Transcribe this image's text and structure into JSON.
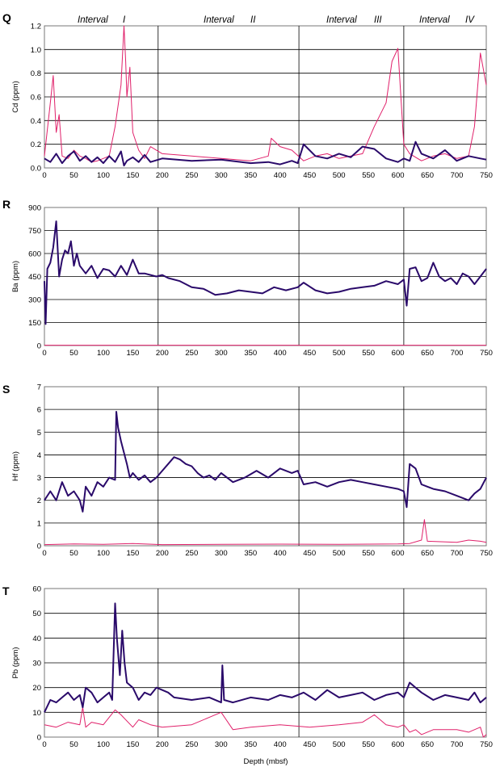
{
  "colors": {
    "series_a": "#2a0a6a",
    "series_b": "#e0206a",
    "grid": "#000000",
    "frame": "#777777"
  },
  "intervals": [
    {
      "label": "Interval",
      "numeral": "I"
    },
    {
      "label": "Interval",
      "numeral": "II"
    },
    {
      "label": "Interval",
      "numeral": "III"
    },
    {
      "label": "Interval",
      "numeral": "IV"
    }
  ],
  "interval_boundaries": [
    193,
    432,
    610
  ],
  "xlabel": "Depth  (mbsf)",
  "x_ticks": [
    "0",
    "50",
    "100",
    "150",
    "200",
    "250",
    "300",
    "350",
    "400",
    "450",
    "500",
    "550",
    "600",
    "650",
    "700",
    "750"
  ],
  "chart_data": [
    {
      "type": "line",
      "panel": "Q",
      "ylabel": "Cd (ppm)",
      "xlim": [
        0,
        750
      ],
      "ylim": [
        0,
        1.2
      ],
      "y_ticks": [
        "0.0",
        "0.2",
        "0.4",
        "0.6",
        "0.8",
        "1.0",
        "1.2"
      ],
      "series": [
        {
          "x": [
            0,
            10,
            20,
            30,
            40,
            50,
            60,
            70,
            80,
            90,
            100,
            110,
            120,
            130,
            135,
            140,
            150,
            160,
            170,
            180,
            200,
            250,
            300,
            350,
            380,
            400,
            420,
            430,
            440,
            460,
            480,
            500,
            520,
            540,
            560,
            580,
            600,
            610,
            620,
            630,
            640,
            660,
            680,
            700,
            720,
            740,
            750
          ],
          "values": [
            0.08,
            0.05,
            0.12,
            0.04,
            0.1,
            0.14,
            0.06,
            0.1,
            0.05,
            0.09,
            0.04,
            0.1,
            0.05,
            0.14,
            0.02,
            0.06,
            0.09,
            0.05,
            0.11,
            0.05,
            0.08,
            0.06,
            0.07,
            0.04,
            0.05,
            0.03,
            0.06,
            0.04,
            0.2,
            0.1,
            0.08,
            0.12,
            0.09,
            0.18,
            0.16,
            0.08,
            0.05,
            0.08,
            0.06,
            0.22,
            0.12,
            0.08,
            0.15,
            0.06,
            0.1,
            0.08,
            0.07
          ]
        },
        {
          "x": [
            0,
            10,
            15,
            20,
            25,
            30,
            40,
            50,
            60,
            70,
            80,
            90,
            100,
            110,
            120,
            130,
            135,
            138,
            140,
            145,
            150,
            160,
            170,
            180,
            200,
            250,
            300,
            350,
            380,
            385,
            400,
            420,
            440,
            460,
            480,
            500,
            520,
            540,
            560,
            580,
            590,
            600,
            610,
            620,
            640,
            660,
            680,
            700,
            720,
            730,
            740,
            750
          ],
          "values": [
            0.1,
            0.55,
            0.78,
            0.3,
            0.45,
            0.1,
            0.08,
            0.15,
            0.1,
            0.08,
            0.05,
            0.06,
            0.08,
            0.1,
            0.35,
            0.7,
            1.2,
            0.9,
            0.6,
            0.85,
            0.3,
            0.15,
            0.08,
            0.18,
            0.12,
            0.1,
            0.08,
            0.06,
            0.1,
            0.25,
            0.18,
            0.15,
            0.06,
            0.1,
            0.12,
            0.08,
            0.1,
            0.12,
            0.35,
            0.55,
            0.9,
            1.01,
            0.2,
            0.12,
            0.06,
            0.1,
            0.12,
            0.08,
            0.1,
            0.35,
            0.97,
            0.7
          ]
        }
      ]
    },
    {
      "type": "line",
      "panel": "R",
      "ylabel": "Ba (ppm)",
      "xlim": [
        0,
        750
      ],
      "ylim": [
        0,
        900
      ],
      "y_ticks": [
        "0",
        "150",
        "300",
        "450",
        "600",
        "750",
        "900"
      ],
      "series": [
        {
          "x": [
            0,
            2,
            5,
            10,
            15,
            20,
            25,
            30,
            35,
            40,
            45,
            50,
            55,
            60,
            70,
            80,
            90,
            100,
            110,
            120,
            130,
            140,
            150,
            160,
            170,
            180,
            190,
            200,
            210,
            230,
            250,
            270,
            290,
            310,
            330,
            350,
            370,
            390,
            410,
            430,
            440,
            460,
            480,
            500,
            520,
            540,
            560,
            580,
            600,
            610,
            615,
            620,
            630,
            640,
            650,
            660,
            670,
            680,
            690,
            700,
            710,
            720,
            730,
            740,
            750
          ],
          "values": [
            420,
            140,
            500,
            540,
            640,
            810,
            450,
            560,
            620,
            600,
            680,
            520,
            600,
            520,
            470,
            520,
            440,
            500,
            490,
            450,
            520,
            460,
            560,
            470,
            470,
            460,
            450,
            460,
            440,
            420,
            380,
            370,
            330,
            340,
            360,
            350,
            340,
            380,
            360,
            380,
            410,
            360,
            340,
            350,
            370,
            380,
            390,
            420,
            400,
            430,
            260,
            500,
            510,
            420,
            440,
            540,
            450,
            420,
            440,
            400,
            470,
            450,
            400,
            450,
            500
          ]
        },
        {
          "x": [
            0,
            750
          ],
          "values": [
            2,
            2
          ]
        }
      ]
    },
    {
      "type": "line",
      "panel": "S",
      "ylabel": "Hf (ppm)",
      "xlim": [
        0,
        750
      ],
      "ylim": [
        0,
        7
      ],
      "y_ticks": [
        "0",
        "1",
        "2",
        "3",
        "4",
        "5",
        "6",
        "7"
      ],
      "series": [
        {
          "x": [
            0,
            10,
            20,
            30,
            40,
            50,
            60,
            65,
            70,
            80,
            90,
            100,
            110,
            120,
            122,
            125,
            130,
            140,
            145,
            150,
            160,
            170,
            180,
            190,
            200,
            210,
            220,
            230,
            240,
            250,
            260,
            270,
            280,
            290,
            300,
            320,
            340,
            360,
            380,
            400,
            420,
            430,
            440,
            460,
            480,
            500,
            520,
            540,
            560,
            580,
            600,
            610,
            615,
            620,
            630,
            640,
            650,
            660,
            680,
            700,
            720,
            730,
            740,
            750
          ],
          "values": [
            2.0,
            2.4,
            2.0,
            2.8,
            2.2,
            2.4,
            2.0,
            1.5,
            2.6,
            2.2,
            2.8,
            2.6,
            3.0,
            2.9,
            5.9,
            5.2,
            4.6,
            3.6,
            3.0,
            3.2,
            2.9,
            3.1,
            2.8,
            3.0,
            3.3,
            3.6,
            3.9,
            3.8,
            3.6,
            3.5,
            3.2,
            3.0,
            3.1,
            2.9,
            3.2,
            2.8,
            3.0,
            3.3,
            3.0,
            3.4,
            3.2,
            3.3,
            2.7,
            2.8,
            2.6,
            2.8,
            2.9,
            2.8,
            2.7,
            2.6,
            2.5,
            2.4,
            1.7,
            3.6,
            3.4,
            2.7,
            2.6,
            2.5,
            2.4,
            2.2,
            2.0,
            2.3,
            2.5,
            3.0
          ]
        },
        {
          "x": [
            0,
            50,
            100,
            150,
            200,
            300,
            400,
            500,
            600,
            620,
            640,
            645,
            650,
            700,
            720,
            740,
            750
          ],
          "values": [
            0.05,
            0.08,
            0.06,
            0.1,
            0.05,
            0.06,
            0.07,
            0.06,
            0.08,
            0.1,
            0.25,
            1.15,
            0.2,
            0.15,
            0.25,
            0.2,
            0.15
          ]
        }
      ]
    },
    {
      "type": "line",
      "panel": "T",
      "ylabel": "Pb (ppm)",
      "xlim": [
        0,
        750
      ],
      "ylim": [
        0,
        60
      ],
      "y_ticks": [
        "0",
        "10",
        "20",
        "30",
        "40",
        "50",
        "60"
      ],
      "series": [
        {
          "x": [
            0,
            10,
            20,
            30,
            40,
            50,
            60,
            65,
            70,
            80,
            90,
            100,
            110,
            115,
            120,
            123,
            128,
            132,
            136,
            140,
            150,
            160,
            170,
            180,
            190,
            200,
            210,
            220,
            250,
            280,
            300,
            302,
            305,
            320,
            350,
            380,
            400,
            420,
            440,
            460,
            480,
            500,
            520,
            540,
            560,
            580,
            600,
            610,
            620,
            630,
            640,
            660,
            680,
            700,
            720,
            730,
            740,
            750
          ],
          "values": [
            10,
            15,
            14,
            16,
            18,
            15,
            17,
            12,
            20,
            18,
            14,
            16,
            18,
            15,
            54,
            40,
            25,
            43,
            30,
            22,
            20,
            15,
            18,
            17,
            20,
            19,
            18,
            16,
            15,
            16,
            14,
            29,
            15,
            14,
            16,
            15,
            17,
            16,
            18,
            15,
            19,
            16,
            17,
            18,
            15,
            17,
            18,
            16,
            22,
            20,
            18,
            15,
            17,
            16,
            15,
            18,
            14,
            16
          ]
        },
        {
          "x": [
            0,
            20,
            40,
            60,
            65,
            70,
            80,
            100,
            120,
            130,
            150,
            160,
            180,
            200,
            250,
            300,
            320,
            350,
            400,
            450,
            500,
            540,
            560,
            580,
            600,
            610,
            620,
            630,
            640,
            660,
            700,
            720,
            740,
            745,
            750
          ],
          "values": [
            5,
            4,
            6,
            5,
            12,
            4,
            6,
            5,
            11,
            9,
            4,
            7,
            5,
            4,
            5,
            10,
            3,
            4,
            5,
            4,
            5,
            6,
            9,
            5,
            4,
            5,
            2,
            3,
            1,
            3,
            3,
            2,
            4,
            0,
            1
          ]
        }
      ]
    }
  ]
}
